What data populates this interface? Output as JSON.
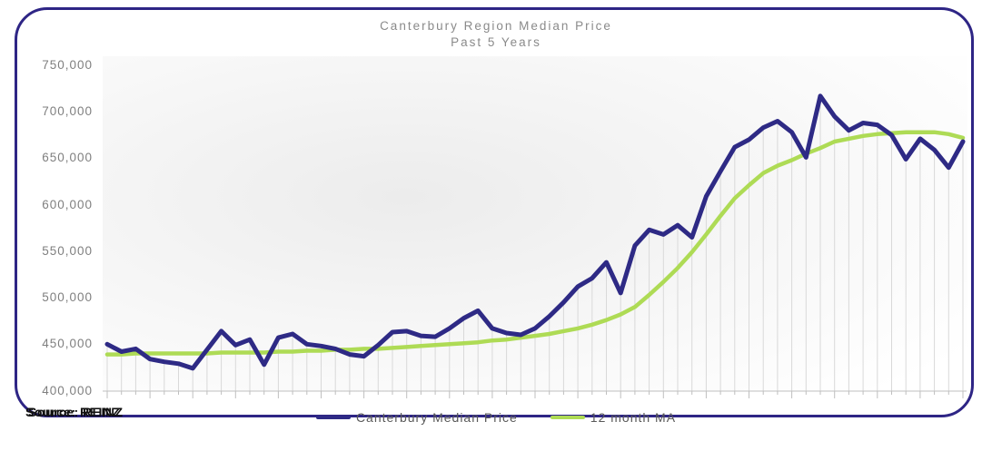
{
  "frame": {
    "border_color": "#2e2585"
  },
  "title": {
    "line1": "Canterbury Region Median Price",
    "line2": "Past 5 Years"
  },
  "source": {
    "text": "Source: REINZ"
  },
  "legend": {
    "items": [
      {
        "label": "Canterbury Median Price",
        "color": "#2e2a85"
      },
      {
        "label": "12 month MA",
        "color": "#aedb55"
      }
    ]
  },
  "chart_data": {
    "type": "line",
    "title": "Canterbury Region Median Price",
    "subtitle": "Past 5 Years",
    "xlabel": "",
    "ylabel": "",
    "x_axis": {
      "unit": "month",
      "n_points": 61,
      "tick_labels_visible": false,
      "minor_tick_every": 1,
      "major_tick_every": 3
    },
    "ylim": [
      400000,
      750000
    ],
    "y_ticks": [
      {
        "value": 750000,
        "label": "750,000"
      },
      {
        "value": 700000,
        "label": "700,000"
      },
      {
        "value": 650000,
        "label": "650,000"
      },
      {
        "value": 600000,
        "label": "600,000"
      },
      {
        "value": 550000,
        "label": "550,000"
      },
      {
        "value": 500000,
        "label": "500,000"
      },
      {
        "value": 450000,
        "label": "450,000"
      },
      {
        "value": 400000,
        "label": "400,000"
      }
    ],
    "grid": "vertical drop lines from each data point to x axis",
    "legend_position": "bottom",
    "x": [
      0,
      1,
      2,
      3,
      4,
      5,
      6,
      7,
      8,
      9,
      10,
      11,
      12,
      13,
      14,
      15,
      16,
      17,
      18,
      19,
      20,
      21,
      22,
      23,
      24,
      25,
      26,
      27,
      28,
      29,
      30,
      31,
      32,
      33,
      34,
      35,
      36,
      37,
      38,
      39,
      40,
      41,
      42,
      43,
      44,
      45,
      46,
      47,
      48,
      49,
      50,
      51,
      52,
      53,
      54,
      55,
      56,
      57,
      58,
      59,
      60
    ],
    "series": [
      {
        "name": "Canterbury Median Price",
        "color": "#2e2a85",
        "stroke_width": 5,
        "values": [
          450000,
          442000,
          445000,
          434000,
          431000,
          429000,
          424000,
          444000,
          464000,
          449000,
          455000,
          428000,
          457000,
          461000,
          450000,
          448000,
          445000,
          439000,
          437000,
          449000,
          463000,
          464000,
          459000,
          458000,
          467000,
          478000,
          486000,
          467000,
          462000,
          460000,
          467000,
          480000,
          495000,
          512000,
          521000,
          538000,
          505000,
          556000,
          573000,
          568000,
          578000,
          565000,
          609000,
          636000,
          662000,
          670000,
          683000,
          690000,
          678000,
          651000,
          717000,
          695000,
          680000,
          688000,
          686000,
          675000,
          649000,
          671000,
          659000,
          640000,
          668000
        ]
      },
      {
        "name": "12 month MA",
        "color": "#aedb55",
        "stroke_width": 4.5,
        "values": [
          439000,
          439000,
          440000,
          440000,
          440000,
          440000,
          440000,
          440000,
          441000,
          441000,
          441000,
          441000,
          442000,
          442000,
          443000,
          443000,
          444000,
          444000,
          445000,
          445000,
          446000,
          447000,
          448000,
          449000,
          450000,
          451000,
          452000,
          454000,
          455000,
          457000,
          459000,
          461000,
          464000,
          467000,
          471000,
          476000,
          482000,
          490000,
          503000,
          517000,
          532000,
          549000,
          568000,
          588000,
          607000,
          621000,
          634000,
          642000,
          648000,
          655000,
          661000,
          668000,
          671000,
          674000,
          676000,
          677000,
          678000,
          678000,
          678000,
          676000,
          672000
        ]
      }
    ]
  }
}
